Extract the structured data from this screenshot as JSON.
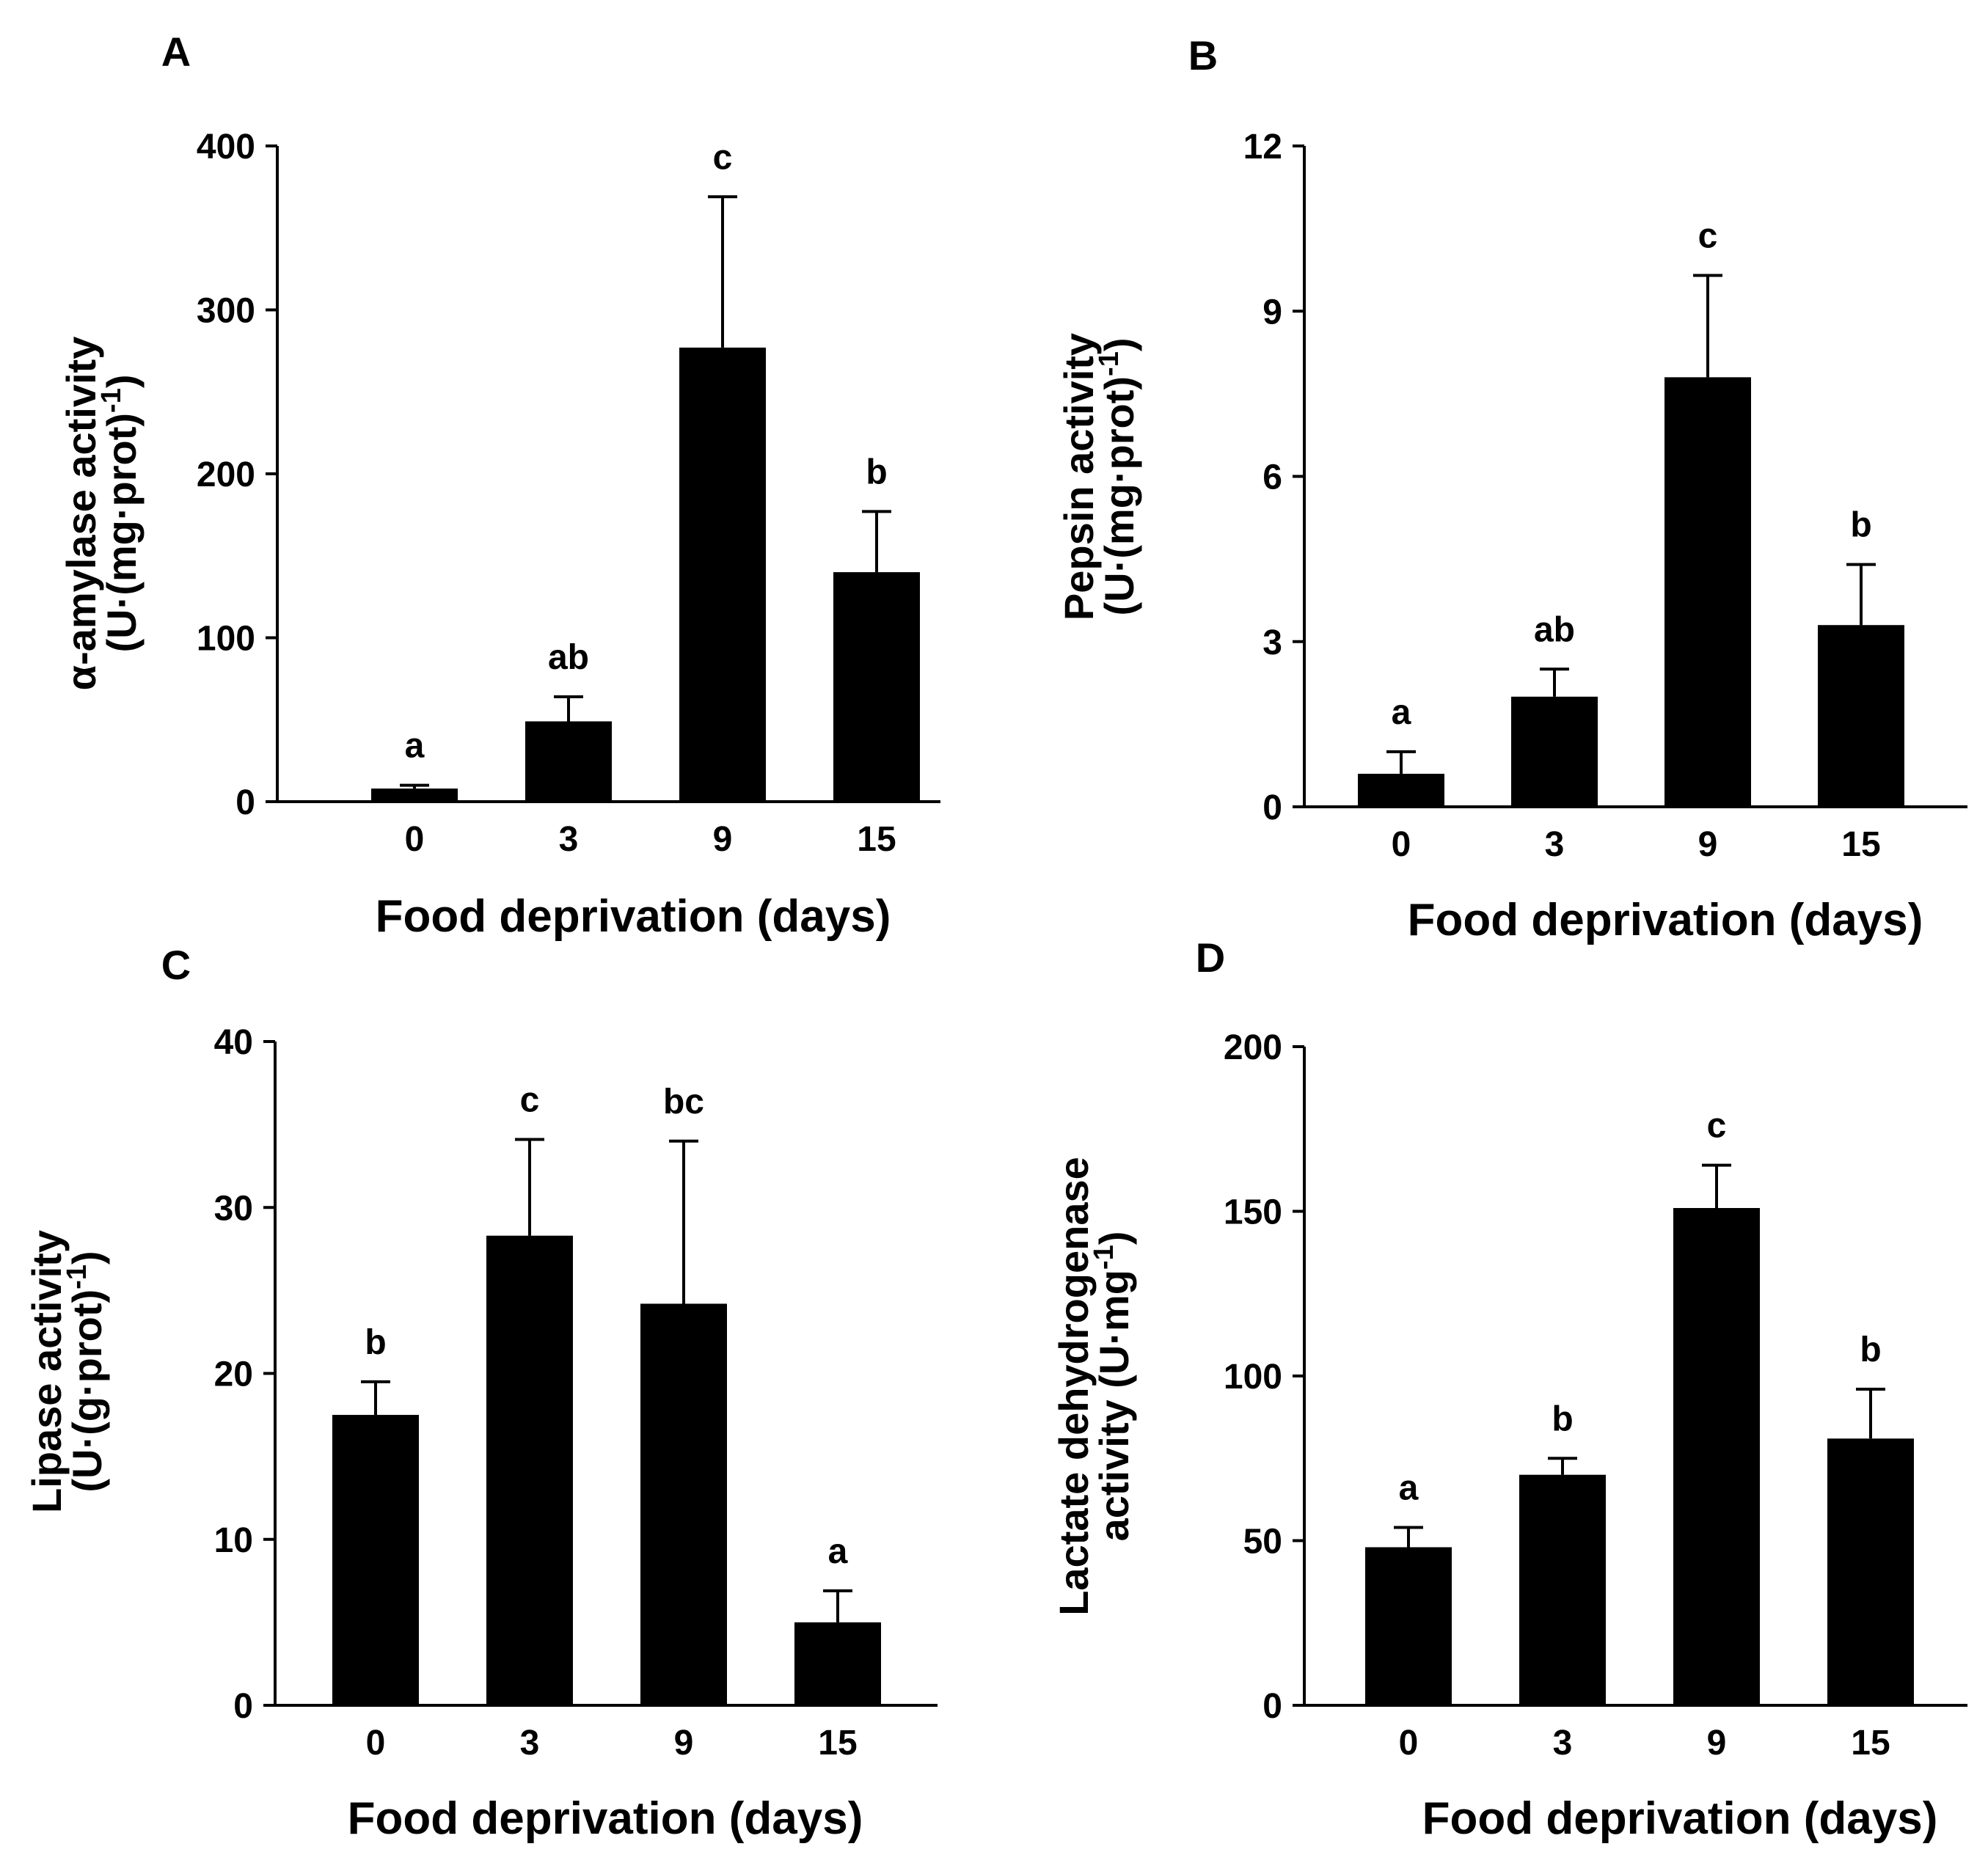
{
  "figure": {
    "colors": {
      "bar": "#000000",
      "axis": "#000000",
      "background": "#ffffff"
    }
  },
  "chart_data": [
    {
      "type": "bar",
      "panel": "A",
      "categories": [
        "0",
        "3",
        "9",
        "15"
      ],
      "values": [
        8,
        49,
        277,
        140
      ],
      "errors": [
        2,
        15,
        92,
        37
      ],
      "significance": [
        "a",
        "ab",
        "c",
        "b"
      ],
      "xlabel": "Food deprivation (days)",
      "ylabel": [
        "α-amylase activity",
        "(U·(mg·prot)",
        "-1",
        ")"
      ],
      "ylim": [
        0,
        400
      ],
      "yticks": [
        0,
        100,
        200,
        300,
        400
      ]
    },
    {
      "type": "bar",
      "panel": "B",
      "categories": [
        "0",
        "3",
        "9",
        "15"
      ],
      "values": [
        0.6,
        2.0,
        7.8,
        3.3
      ],
      "errors": [
        0.4,
        0.5,
        1.85,
        1.1
      ],
      "significance": [
        "a",
        "ab",
        "c",
        "b"
      ],
      "xlabel": "Food deprivation (days)",
      "ylabel": [
        "Pepsin activity",
        "(U·(mg·prot)",
        "-1",
        ")"
      ],
      "ylim": [
        0,
        12
      ],
      "yticks": [
        0,
        3,
        6,
        9,
        12
      ]
    },
    {
      "type": "bar",
      "panel": "C",
      "categories": [
        "0",
        "3",
        "9",
        "15"
      ],
      "values": [
        17.5,
        28.3,
        24.2,
        5.0
      ],
      "errors": [
        2.0,
        5.8,
        9.8,
        1.9
      ],
      "significance": [
        "b",
        "c",
        "bc",
        "a"
      ],
      "xlabel": "Food deprivation (days)",
      "ylabel": [
        "Lipase activity",
        "(U·(g·prot)",
        "-1",
        ")"
      ],
      "ylim": [
        0,
        40
      ],
      "yticks": [
        0,
        10,
        20,
        30,
        40
      ]
    },
    {
      "type": "bar",
      "panel": "D",
      "categories": [
        "0",
        "3",
        "9",
        "15"
      ],
      "values": [
        48,
        70,
        151,
        81
      ],
      "errors": [
        6,
        5,
        13,
        15
      ],
      "significance": [
        "a",
        "b",
        "c",
        "b"
      ],
      "xlabel": "Food deprivation (days)",
      "ylabel": [
        "Lactate dehydrogenase",
        "activity (U·mg",
        "-1",
        ")"
      ],
      "ylim": [
        0,
        200
      ],
      "yticks": [
        0,
        50,
        100,
        150,
        200
      ]
    }
  ]
}
